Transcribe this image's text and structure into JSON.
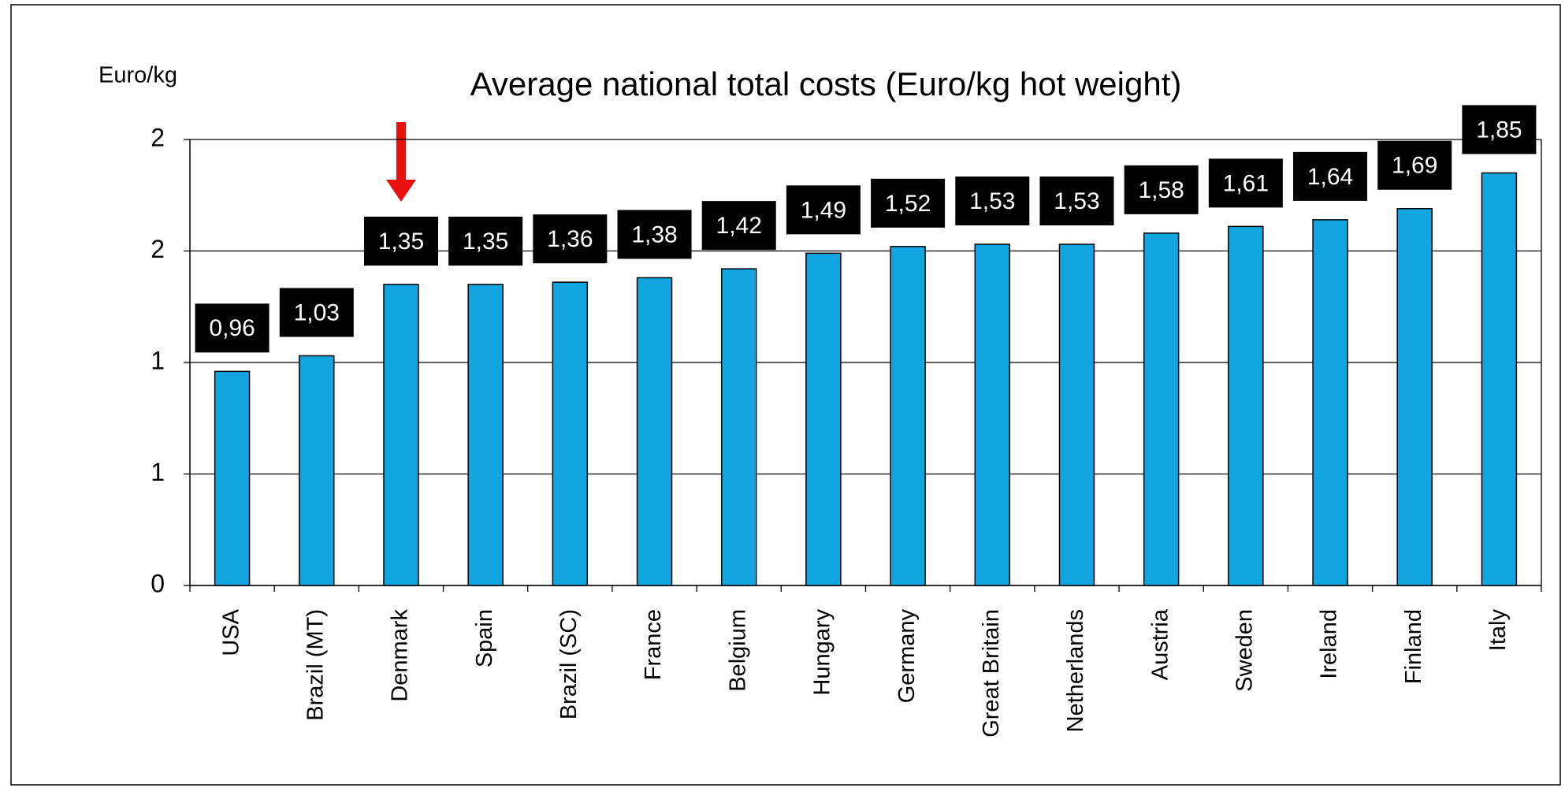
{
  "chart_data": {
    "type": "bar",
    "title": "Average national total costs (Euro/kg hot weight)",
    "y_label": "Euro/kg",
    "categories": [
      "USA",
      "Brazil (MT)",
      "Denmark",
      "Spain",
      "Brazil (SC)",
      "France",
      "Belgium",
      "Hungary",
      "Germany",
      "Great Britain",
      "Netherlands",
      "Austria",
      "Sweden",
      "Ireland",
      "Finland",
      "Italy"
    ],
    "values": [
      0.96,
      1.03,
      1.35,
      1.35,
      1.36,
      1.38,
      1.42,
      1.49,
      1.52,
      1.53,
      1.53,
      1.58,
      1.61,
      1.64,
      1.69,
      1.85
    ],
    "value_labels": [
      "0,96",
      "1,03",
      "1,35",
      "1,35",
      "1,36",
      "1,38",
      "1,42",
      "1,49",
      "1,52",
      "1,53",
      "1,53",
      "1,58",
      "1,61",
      "1,64",
      "1,69",
      "1,85"
    ],
    "color": "#13a5e0",
    "ylim": [
      0,
      2
    ],
    "yticks": [
      0,
      {
        "value": 0.5,
        "label": "1"
      },
      1,
      {
        "value": 1.5,
        "label": "2"
      },
      2
    ],
    "grid": true
  }
}
